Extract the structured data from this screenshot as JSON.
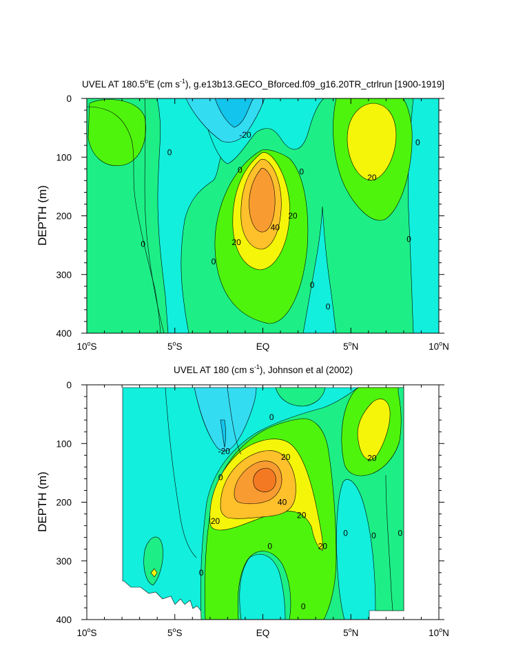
{
  "chart_data": [
    {
      "type": "heatmap",
      "title": "UVEL AT 180.5°E (cm s⁻¹), g.e13b13.GECO_Bforced.f09_g16.20TR_ctrlrun [1900-1919]",
      "title_parts": {
        "before": "UVEL AT 180.5",
        "deg": "o",
        "mid": "E (cm s",
        "sup": "-1",
        "after": "), g.e13b13.GECO_Bforced.f09_g16.20TR_ctrlrun [1900-1919]"
      },
      "ylabel": "DEPTH (m)",
      "xlabel": "",
      "xlim": [
        -10,
        10
      ],
      "ylim": [
        0,
        400
      ],
      "y_reversed": true,
      "x_ticks": [
        {
          "value": -10,
          "num": "10",
          "hemi": "S"
        },
        {
          "value": -5,
          "num": "5",
          "hemi": "S"
        },
        {
          "value": 0,
          "num": "EQ",
          "hemi": ""
        },
        {
          "value": 5,
          "num": "5",
          "hemi": "N"
        },
        {
          "value": 10,
          "num": "10",
          "hemi": "N"
        }
      ],
      "y_ticks": [
        0,
        100,
        200,
        300,
        400
      ],
      "contour_labels": [
        {
          "text": "-20",
          "x": -1.0,
          "y": 62
        },
        {
          "text": "0",
          "x": -5.3,
          "y": 92
        },
        {
          "text": "0",
          "x": -1.3,
          "y": 122
        },
        {
          "text": "0",
          "x": 2.2,
          "y": 125
        },
        {
          "text": "0",
          "x": 8.8,
          "y": 75
        },
        {
          "text": "20",
          "x": 6.2,
          "y": 135
        },
        {
          "text": "40",
          "x": 0.7,
          "y": 220
        },
        {
          "text": "20",
          "x": 1.7,
          "y": 200
        },
        {
          "text": "20",
          "x": -1.5,
          "y": 245
        },
        {
          "text": "0",
          "x": -6.8,
          "y": 248
        },
        {
          "text": "0",
          "x": -2.8,
          "y": 278
        },
        {
          "text": "0",
          "x": 2.8,
          "y": 318
        },
        {
          "text": "0",
          "x": 3.7,
          "y": 355
        },
        {
          "text": "0",
          "x": 8.3,
          "y": 240
        }
      ]
    },
    {
      "type": "heatmap",
      "title": "UVEL AT 180 (cm s⁻¹), Johnson et al (2002)",
      "title_parts": {
        "before": "UVEL AT 180 (cm s",
        "sup": "-1",
        "after": "), Johnson et al (2002)"
      },
      "ylabel": "DEPTH (m)",
      "xlabel": "",
      "xlim": [
        -10,
        10
      ],
      "ylim": [
        0,
        400
      ],
      "y_reversed": true,
      "x_ticks": [
        {
          "value": -10,
          "num": "10",
          "hemi": "S"
        },
        {
          "value": -5,
          "num": "5",
          "hemi": "S"
        },
        {
          "value": 0,
          "num": "EQ",
          "hemi": ""
        },
        {
          "value": 5,
          "num": "5",
          "hemi": "N"
        },
        {
          "value": 10,
          "num": "10",
          "hemi": "N"
        }
      ],
      "y_ticks": [
        0,
        100,
        200,
        300,
        400
      ],
      "data_extent": {
        "x": [
          -8,
          8
        ],
        "y": [
          5,
          385
        ]
      },
      "contour_labels": [
        {
          "text": "0",
          "x": 0.5,
          "y": 55
        },
        {
          "text": "-20",
          "x": -2.2,
          "y": 113
        },
        {
          "text": "20",
          "x": 1.3,
          "y": 123
        },
        {
          "text": "20",
          "x": 6.2,
          "y": 125
        },
        {
          "text": "0",
          "x": -2.4,
          "y": 158
        },
        {
          "text": "40",
          "x": 1.1,
          "y": 200
        },
        {
          "text": "20",
          "x": 2.2,
          "y": 222
        },
        {
          "text": "20",
          "x": -2.7,
          "y": 232
        },
        {
          "text": "20",
          "x": 3.4,
          "y": 275
        },
        {
          "text": "0",
          "x": 0.4,
          "y": 275
        },
        {
          "text": "0",
          "x": 4.7,
          "y": 253
        },
        {
          "text": "0",
          "x": 6.3,
          "y": 257
        },
        {
          "text": "0",
          "x": 7.8,
          "y": 253
        },
        {
          "text": "0",
          "x": -3.5,
          "y": 320
        },
        {
          "text": "0",
          "x": 2.3,
          "y": 378
        }
      ]
    }
  ],
  "colors": {
    "c_neg30": "#13c5ec",
    "c_neg20": "#34dcf2",
    "c_neg10": "#12efdc",
    "c_0": "#1def86",
    "c_10": "#4ef40c",
    "c_20": "#f5f509",
    "c_30": "#fec02b",
    "c_40": "#f89c31",
    "c_50": "#f37a22"
  }
}
